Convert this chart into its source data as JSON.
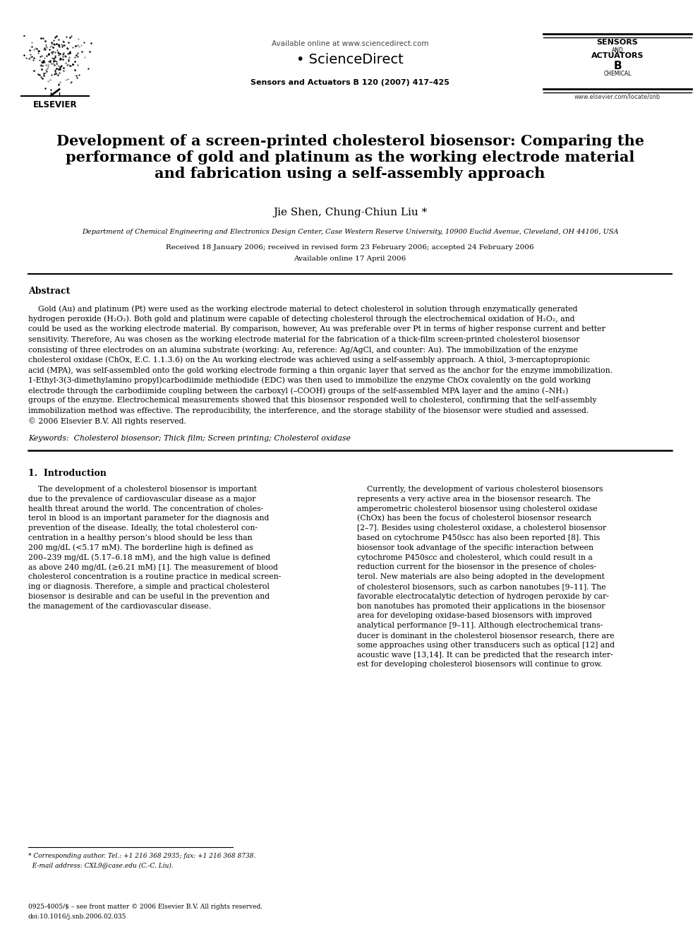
{
  "background_color": "#ffffff",
  "page_width": 9.92,
  "page_height": 13.23,
  "dpi": 100,
  "header": {
    "available_online_text": "Available online at www.sciencedirect.com",
    "sciencedirect_text": "• ScienceDirect",
    "journal_text": "Sensors and Actuators B 120 (2007) 417–425",
    "elsevier_text": "ELSEVIER",
    "website_text": "www.elsevier.com/locate/snb"
  },
  "title_line1": "Development of a screen-printed cholesterol biosensor: Comparing the",
  "title_line2": "performance of gold and platinum as the working electrode material",
  "title_line3": "and fabrication using a self-assembly approach",
  "authors": "Jie Shen, Chung-Chiun Liu *",
  "affiliation": "Department of Chemical Engineering and Electronics Design Center, Case Western Reserve University, 10900 Euclid Avenue, Cleveland, OH 44106, USA",
  "received_text": "Received 18 January 2006; received in revised form 23 February 2006; accepted 24 February 2006",
  "available_text": "Available online 17 April 2006",
  "abstract_title": "Abstract",
  "keywords_text": "Keywords:  Cholesterol biosensor; Thick film; Screen printing; Cholesterol oxidase",
  "section1_title": "1.  Introduction",
  "footnote_line1": "* Corresponding author. Tel.: +1 216 368 2935; fax: +1 216 368 8738.",
  "footnote_line2": "  E-mail address: CXL9@case.edu (C.-C. Liu).",
  "bottom_line1": "0925-4005/$ – see front matter © 2006 Elsevier B.V. All rights reserved.",
  "bottom_line2": "doi:10.1016/j.snb.2006.02.035",
  "abstract_body_lines": [
    "    Gold (Au) and platinum (Pt) were used as the working electrode material to detect cholesterol in solution through enzymatically generated",
    "hydrogen peroxide (H₂O₂). Both gold and platinum were capable of detecting cholesterol through the electrochemical oxidation of H₂O₂, and",
    "could be used as the working electrode material. By comparison, however, Au was preferable over Pt in terms of higher response current and better",
    "sensitivity. Therefore, Au was chosen as the working electrode material for the fabrication of a thick-film screen-printed cholesterol biosensor",
    "consisting of three electrodes on an alumina substrate (working: Au, reference: Ag/AgCl, and counter: Au). The immobilization of the enzyme",
    "cholesterol oxidase (ChOx, E.C. 1.1.3.6) on the Au working electrode was achieved using a self-assembly approach. A thiol, 3-mercaptopropionic",
    "acid (MPA), was self-assembled onto the gold working electrode forming a thin organic layer that served as the anchor for the enzyme immobilization.",
    "1-Ethyl-3(3-dimethylamino propyl)carbodiimide methiodide (EDC) was then used to immobilize the enzyme ChOx covalently on the gold working",
    "electrode through the carbodiimide coupling between the carboxyl (–COOH) groups of the self-assembled MPA layer and the amino (–NH₂)",
    "groups of the enzyme. Electrochemical measurements showed that this biosensor responded well to cholesterol, confirming that the self-assembly",
    "immobilization method was effective. The reproducibility, the interference, and the storage stability of the biosensor were studied and assessed.",
    "© 2006 Elsevier B.V. All rights reserved."
  ],
  "left_col_lines": [
    "    The development of a cholesterol biosensor is important",
    "due to the prevalence of cardiovascular disease as a major",
    "health threat around the world. The concentration of choles-",
    "terol in blood is an important parameter for the diagnosis and",
    "prevention of the disease. Ideally, the total cholesterol con-",
    "centration in a healthy person’s blood should be less than",
    "200 mg/dL (<5.17 mM). The borderline high is defined as",
    "200–239 mg/dL (5.17–6.18 mM), and the high value is defined",
    "as above 240 mg/dL (≥6.21 mM) [1]. The measurement of blood",
    "cholesterol concentration is a routine practice in medical screen-",
    "ing or diagnosis. Therefore, a simple and practical cholesterol",
    "biosensor is desirable and can be useful in the prevention and",
    "the management of the cardiovascular disease."
  ],
  "right_col_lines": [
    "    Currently, the development of various cholesterol biosensors",
    "represents a very active area in the biosensor research. The",
    "amperometric cholesterol biosensor using cholesterol oxidase",
    "(ChOx) has been the focus of cholesterol biosensor research",
    "[2–7]. Besides using cholesterol oxidase, a cholesterol biosensor",
    "based on cytochrome P450scc has also been reported [8]. This",
    "biosensor took advantage of the specific interaction between",
    "cytochrome P450scc and cholesterol, which could result in a",
    "reduction current for the biosensor in the presence of choles-",
    "terol. New materials are also being adopted in the development",
    "of cholesterol biosensors, such as carbon nanotubes [9–11]. The",
    "favorable electrocatalytic detection of hydrogen peroxide by car-",
    "bon nanotubes has promoted their applications in the biosensor",
    "area for developing oxidase-based biosensors with improved",
    "analytical performance [9–11]. Although electrochemical trans-",
    "ducer is dominant in the cholesterol biosensor research, there are",
    "some approaches using other transducers such as optical [12] and",
    "acoustic wave [13,14]. It can be predicted that the research inter-",
    "est for developing cholesterol biosensors will continue to grow."
  ]
}
